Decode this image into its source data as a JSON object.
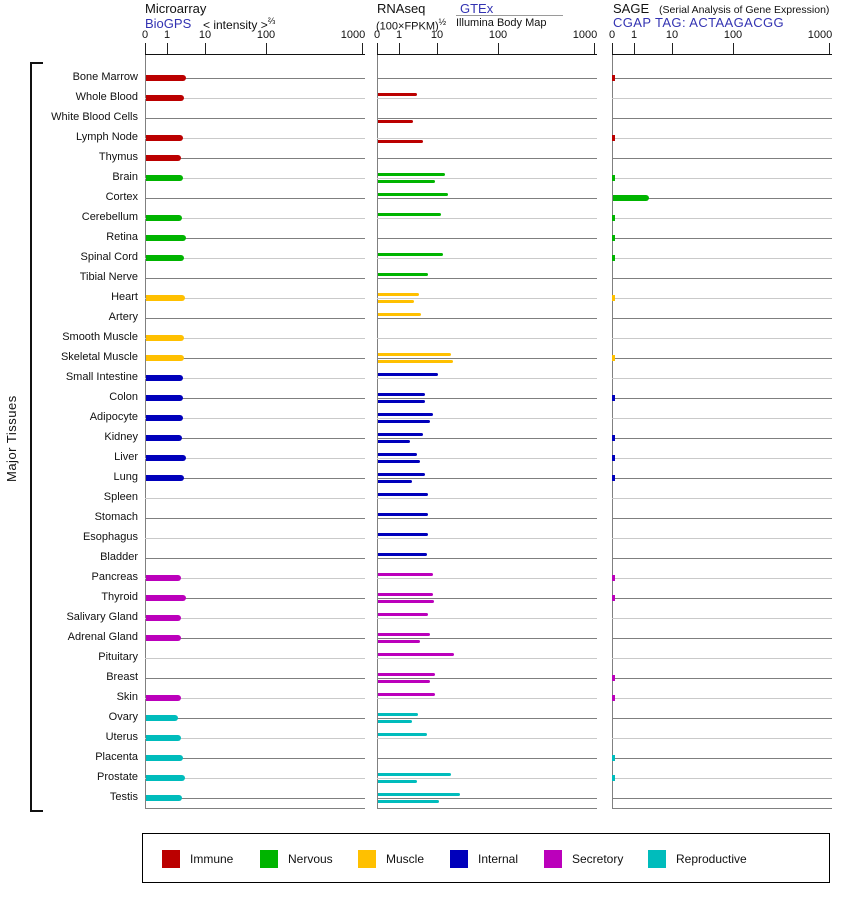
{
  "y_axis_label": "Major Tissues",
  "axis": {
    "ticks": [
      "0",
      "1",
      "10",
      "100",
      "1000"
    ]
  },
  "panels": {
    "microarray": {
      "title": "Microarray",
      "source": "BioGPS",
      "unit": "< intensity >",
      "unit_sup": "⅔"
    },
    "rnaseq": {
      "title": "RNAseq",
      "unit": "(100×FPKM)",
      "unit_sup": "½",
      "source1": "GTEx",
      "source2": "Illumina Body Map"
    },
    "sage": {
      "title": "SAGE",
      "subtitle": "(Serial Analysis of Gene Expression)",
      "source": "CGAP TAG: ACTAAGACGG"
    }
  },
  "legend": {
    "items": [
      {
        "label": "Immune",
        "color": "#bb0000"
      },
      {
        "label": "Nervous",
        "color": "#00b400"
      },
      {
        "label": "Muscle",
        "color": "#ffc000"
      },
      {
        "label": "Internal",
        "color": "#0000bb"
      },
      {
        "label": "Secretory",
        "color": "#bb00bb"
      },
      {
        "label": "Reproductive",
        "color": "#00bcbc"
      }
    ]
  },
  "chart_data": {
    "type": "bar",
    "orientation": "horizontal",
    "title": "Gene expression across major tissues (Microarray / RNAseq / SAGE)",
    "x_ticks": [
      0,
      1,
      10,
      100,
      1000
    ],
    "x_scale": "power scale: bar position proportional to value^(1/5); decade ticks 0,1,10,100,1000",
    "panels": [
      {
        "key": "microarray",
        "label": "Microarray — BioGPS < intensity >⅔",
        "series": [
          "microarray"
        ]
      },
      {
        "key": "rnaseq",
        "label": "RNAseq — (100×FPKM)½",
        "series": [
          "rnaseq_gtex",
          "rnaseq_illumina"
        ]
      },
      {
        "key": "sage",
        "label": "SAGE — CGAP TAG: ACTAAGACGG",
        "series": [
          "sage"
        ]
      }
    ],
    "value_notes": "null = no bar shown; sage value 0.1 = trace tick at axis origin",
    "tissues": [
      {
        "name": "Bone Marrow",
        "category": "Immune",
        "microarray": 3.4,
        "rnaseq_gtex": null,
        "rnaseq_illumina": null,
        "sage": 0.1
      },
      {
        "name": "Whole Blood",
        "category": "Immune",
        "microarray": 3.0,
        "rnaseq_gtex": 3.1,
        "rnaseq_illumina": null,
        "sage": null
      },
      {
        "name": "White Blood Cells",
        "category": "Immune",
        "microarray": null,
        "rnaseq_gtex": null,
        "rnaseq_illumina": 2.5,
        "sage": null
      },
      {
        "name": "Lymph Node",
        "category": "Immune",
        "microarray": 2.8,
        "rnaseq_gtex": null,
        "rnaseq_illumina": 4.5,
        "sage": 0.1
      },
      {
        "name": "Thymus",
        "category": "Immune",
        "microarray": 2.4,
        "rnaseq_gtex": null,
        "rnaseq_illumina": null,
        "sage": null
      },
      {
        "name": "Brain",
        "category": "Nervous",
        "microarray": 2.8,
        "rnaseq_gtex": 13.9,
        "rnaseq_illumina": 8.6,
        "sage": 0.1
      },
      {
        "name": "Cortex",
        "category": "Nervous",
        "microarray": null,
        "rnaseq_gtex": 15.6,
        "rnaseq_illumina": null,
        "sage": 2.6
      },
      {
        "name": "Cerebellum",
        "category": "Nervous",
        "microarray": 2.6,
        "rnaseq_gtex": 11.2,
        "rnaseq_illumina": null,
        "sage": 0.1
      },
      {
        "name": "Retina",
        "category": "Nervous",
        "microarray": 3.4,
        "rnaseq_gtex": null,
        "rnaseq_illumina": null,
        "sage": 0.1
      },
      {
        "name": "Spinal Cord",
        "category": "Nervous",
        "microarray": 3.0,
        "rnaseq_gtex": 12.7,
        "rnaseq_illumina": null,
        "sage": 0.1
      },
      {
        "name": "Tibial Nerve",
        "category": "Nervous",
        "microarray": null,
        "rnaseq_gtex": 5.9,
        "rnaseq_illumina": null,
        "sage": null
      },
      {
        "name": "Heart",
        "category": "Muscle",
        "microarray": 3.2,
        "rnaseq_gtex": 3.6,
        "rnaseq_illumina": 2.7,
        "sage": 0.1
      },
      {
        "name": "Artery",
        "category": "Muscle",
        "microarray": null,
        "rnaseq_gtex": 4.0,
        "rnaseq_illumina": null,
        "sage": null
      },
      {
        "name": "Smooth Muscle",
        "category": "Muscle",
        "microarray": 3.0,
        "rnaseq_gtex": null,
        "rnaseq_illumina": null,
        "sage": null
      },
      {
        "name": "Skeletal Muscle",
        "category": "Muscle",
        "microarray": 3.0,
        "rnaseq_gtex": 17.6,
        "rnaseq_illumina": 19.8,
        "sage": 0.1
      },
      {
        "name": "Small Intestine",
        "category": "Internal",
        "microarray": 2.8,
        "rnaseq_gtex": 9.9,
        "rnaseq_illumina": null,
        "sage": null
      },
      {
        "name": "Colon",
        "category": "Internal",
        "microarray": 2.8,
        "rnaseq_gtex": 5.0,
        "rnaseq_illumina": 5.0,
        "sage": 0.1
      },
      {
        "name": "Adipocyte",
        "category": "Internal",
        "microarray": 2.8,
        "rnaseq_gtex": 7.7,
        "rnaseq_illumina": 6.6,
        "sage": null
      },
      {
        "name": "Kidney",
        "category": "Internal",
        "microarray": 2.7,
        "rnaseq_gtex": 4.5,
        "rnaseq_illumina": 2.0,
        "sage": 0.1
      },
      {
        "name": "Liver",
        "category": "Internal",
        "microarray": 3.4,
        "rnaseq_gtex": 3.1,
        "rnaseq_illumina": 3.7,
        "sage": 0.1
      },
      {
        "name": "Lung",
        "category": "Internal",
        "microarray": 3.0,
        "rnaseq_gtex": 5.0,
        "rnaseq_illumina": 2.3,
        "sage": 0.1
      },
      {
        "name": "Spleen",
        "category": "Internal",
        "microarray": null,
        "rnaseq_gtex": 5.9,
        "rnaseq_illumina": null,
        "sage": null
      },
      {
        "name": "Stomach",
        "category": "Internal",
        "microarray": null,
        "rnaseq_gtex": 5.9,
        "rnaseq_illumina": null,
        "sage": null
      },
      {
        "name": "Esophagus",
        "category": "Internal",
        "microarray": null,
        "rnaseq_gtex": 5.9,
        "rnaseq_illumina": null,
        "sage": null
      },
      {
        "name": "Bladder",
        "category": "Internal",
        "microarray": null,
        "rnaseq_gtex": 5.5,
        "rnaseq_illumina": null,
        "sage": null
      },
      {
        "name": "Pancreas",
        "category": "Secretory",
        "microarray": 2.4,
        "rnaseq_gtex": 7.7,
        "rnaseq_illumina": null,
        "sage": 0.1
      },
      {
        "name": "Thyroid",
        "category": "Secretory",
        "microarray": 3.4,
        "rnaseq_gtex": 7.7,
        "rnaseq_illumina": 8.1,
        "sage": 0.1
      },
      {
        "name": "Salivary Gland",
        "category": "Secretory",
        "microarray": 2.5,
        "rnaseq_gtex": 6.1,
        "rnaseq_illumina": null,
        "sage": null
      },
      {
        "name": "Adrenal Gland",
        "category": "Secretory",
        "microarray": 2.5,
        "rnaseq_gtex": 6.5,
        "rnaseq_illumina": 3.7,
        "sage": null
      },
      {
        "name": "Pituitary",
        "category": "Secretory",
        "microarray": null,
        "rnaseq_gtex": 20.3,
        "rnaseq_illumina": null,
        "sage": null
      },
      {
        "name": "Breast",
        "category": "Secretory",
        "microarray": null,
        "rnaseq_gtex": 8.4,
        "rnaseq_illumina": 6.7,
        "sage": 0.1
      },
      {
        "name": "Skin",
        "category": "Secretory",
        "microarray": 2.5,
        "rnaseq_gtex": 8.4,
        "rnaseq_illumina": null,
        "sage": 0.1
      },
      {
        "name": "Ovary",
        "category": "Reproductive",
        "microarray": 2.1,
        "rnaseq_gtex": 3.4,
        "rnaseq_illumina": 2.3,
        "sage": null
      },
      {
        "name": "Uterus",
        "category": "Reproductive",
        "microarray": 2.5,
        "rnaseq_gtex": 5.5,
        "rnaseq_illumina": null,
        "sage": null
      },
      {
        "name": "Placenta",
        "category": "Reproductive",
        "microarray": 2.8,
        "rnaseq_gtex": null,
        "rnaseq_illumina": null,
        "sage": 0.1
      },
      {
        "name": "Prostate",
        "category": "Reproductive",
        "microarray": 3.2,
        "rnaseq_gtex": 17.6,
        "rnaseq_illumina": 3.2,
        "sage": 0.1
      },
      {
        "name": "Testis",
        "category": "Reproductive",
        "microarray": 2.7,
        "rnaseq_gtex": 25.6,
        "rnaseq_illumina": 10.4,
        "sage": null
      }
    ]
  }
}
